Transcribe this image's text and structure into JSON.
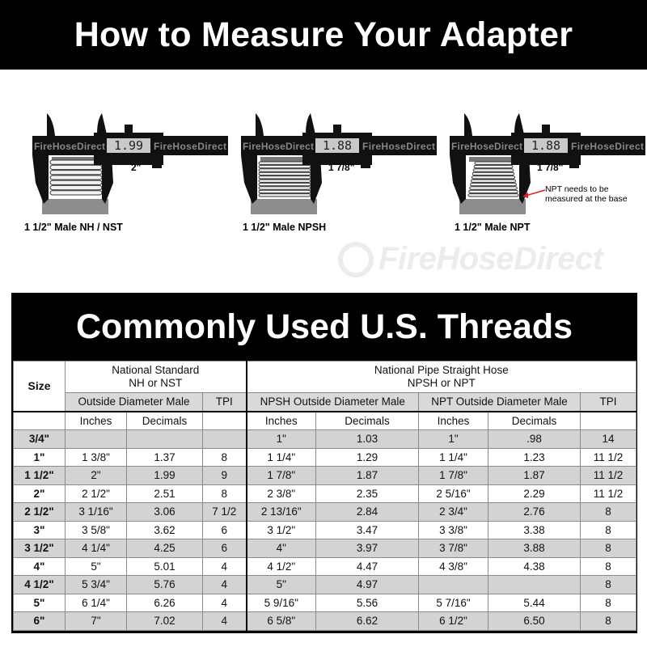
{
  "header": {
    "title": "How to Measure Your Adapter"
  },
  "calipers": [
    {
      "display": "1.99",
      "measure": "2\"",
      "caption": "1 1/2\" Male NH / NST",
      "brand": "FireHoseDirect"
    },
    {
      "display": "1.88",
      "measure": "1 7/8\"",
      "caption": "1 1/2\" Male NPSH",
      "brand": "FireHoseDirect"
    },
    {
      "display": "1.88",
      "measure": "1 7/8\"",
      "caption": "1 1/2\" Male NPT",
      "brand": "FireHoseDirect",
      "note": "NPT needs to be measured at the base"
    }
  ],
  "watermark": "FireHoseDirect",
  "table": {
    "title": "Commonly Used U.S. Threads",
    "size_header": "Size",
    "group1": {
      "line1": "National Standard",
      "line2": "NH or NST"
    },
    "group2": {
      "line1": "National Pipe Straight Hose",
      "line2": "NPSH or NPT"
    },
    "sub": {
      "nh_od": "Outside Diameter Male",
      "tpi1": "TPI",
      "npsh_od": "NPSH Outside Diameter Male",
      "npt_od": "NPT Outside Diameter Male",
      "tpi2": "TPI"
    },
    "units": {
      "inches": "Inches",
      "decimals": "Decimals"
    },
    "rows": [
      [
        "3/4\"",
        "",
        "",
        "",
        "1\"",
        "1.03",
        "1\"",
        ".98",
        "14"
      ],
      [
        "1\"",
        "1 3/8\"",
        "1.37",
        "8",
        "1 1/4\"",
        "1.29",
        "1 1/4\"",
        "1.23",
        "11 1/2"
      ],
      [
        "1 1/2\"",
        "2\"",
        "1.99",
        "9",
        "1 7/8\"",
        "1.87",
        "1 7/8\"",
        "1.87",
        "11 1/2"
      ],
      [
        "2\"",
        "2 1/2\"",
        "2.51",
        "8",
        "2 3/8\"",
        "2.35",
        "2 5/16\"",
        "2.29",
        "11 1/2"
      ],
      [
        "2 1/2\"",
        "3 1/16\"",
        "3.06",
        "7 1/2",
        "2 13/16\"",
        "2.84",
        "2 3/4\"",
        "2.76",
        "8"
      ],
      [
        "3\"",
        "3 5/8\"",
        "3.62",
        "6",
        "3 1/2\"",
        "3.47",
        "3 3/8\"",
        "3.38",
        "8"
      ],
      [
        "3 1/2\"",
        "4 1/4\"",
        "4.25",
        "6",
        "4\"",
        "3.97",
        "3 7/8\"",
        "3.88",
        "8"
      ],
      [
        "4\"",
        "5\"",
        "5.01",
        "4",
        "4 1/2\"",
        "4.47",
        "4 3/8\"",
        "4.38",
        "8"
      ],
      [
        "4 1/2\"",
        "5 3/4\"",
        "5.76",
        "4",
        "5\"",
        "4.97",
        "",
        "",
        "8"
      ],
      [
        "5\"",
        "6 1/4\"",
        "6.26",
        "4",
        "5 9/16\"",
        "5.56",
        "5 7/16\"",
        "5.44",
        "8"
      ],
      [
        "6\"",
        "7\"",
        "7.02",
        "4",
        "6 5/8\"",
        "6.62",
        "6 1/2\"",
        "6.50",
        "8"
      ]
    ]
  }
}
